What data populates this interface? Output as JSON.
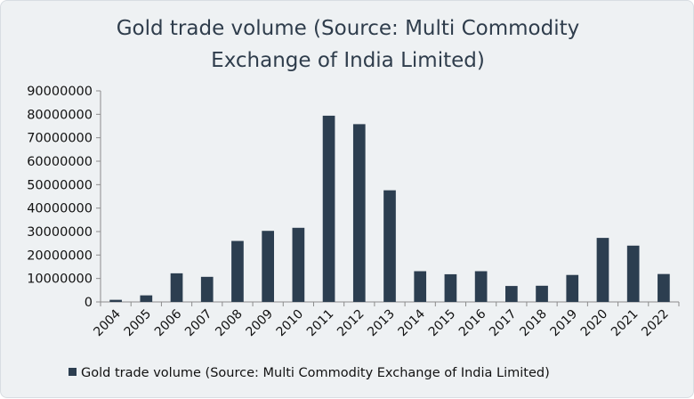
{
  "colors": {
    "bar": "#2c3e50",
    "axis": "#8c8c8c",
    "title": "#2f3d4c",
    "background": "#eef1f3"
  },
  "chart_data": {
    "type": "bar",
    "title_lines": [
      "Gold trade volume (Source: Multi Commodity",
      "Exchange of India Limited)"
    ],
    "categories": [
      "2004",
      "2005",
      "2006",
      "2007",
      "2008",
      "2009",
      "2010",
      "2011",
      "2012",
      "2013",
      "2014",
      "2015",
      "2016",
      "2017",
      "2018",
      "2019",
      "2020",
      "2021",
      "2022"
    ],
    "series": [
      {
        "name": "Gold trade volume (Source: Multi Commodity Exchange of India Limited)",
        "values": [
          900000,
          2800000,
          12200000,
          10700000,
          26000000,
          30300000,
          31600000,
          79400000,
          75800000,
          47600000,
          13100000,
          11800000,
          13100000,
          6800000,
          6900000,
          11500000,
          27300000,
          24000000,
          11900000
        ]
      }
    ],
    "ylim": [
      0,
      90000000
    ],
    "yticks": [
      "0",
      "10000000",
      "20000000",
      "30000000",
      "40000000",
      "50000000",
      "60000000",
      "70000000",
      "80000000",
      "90000000"
    ],
    "grid": false,
    "legend_position": "bottom"
  }
}
